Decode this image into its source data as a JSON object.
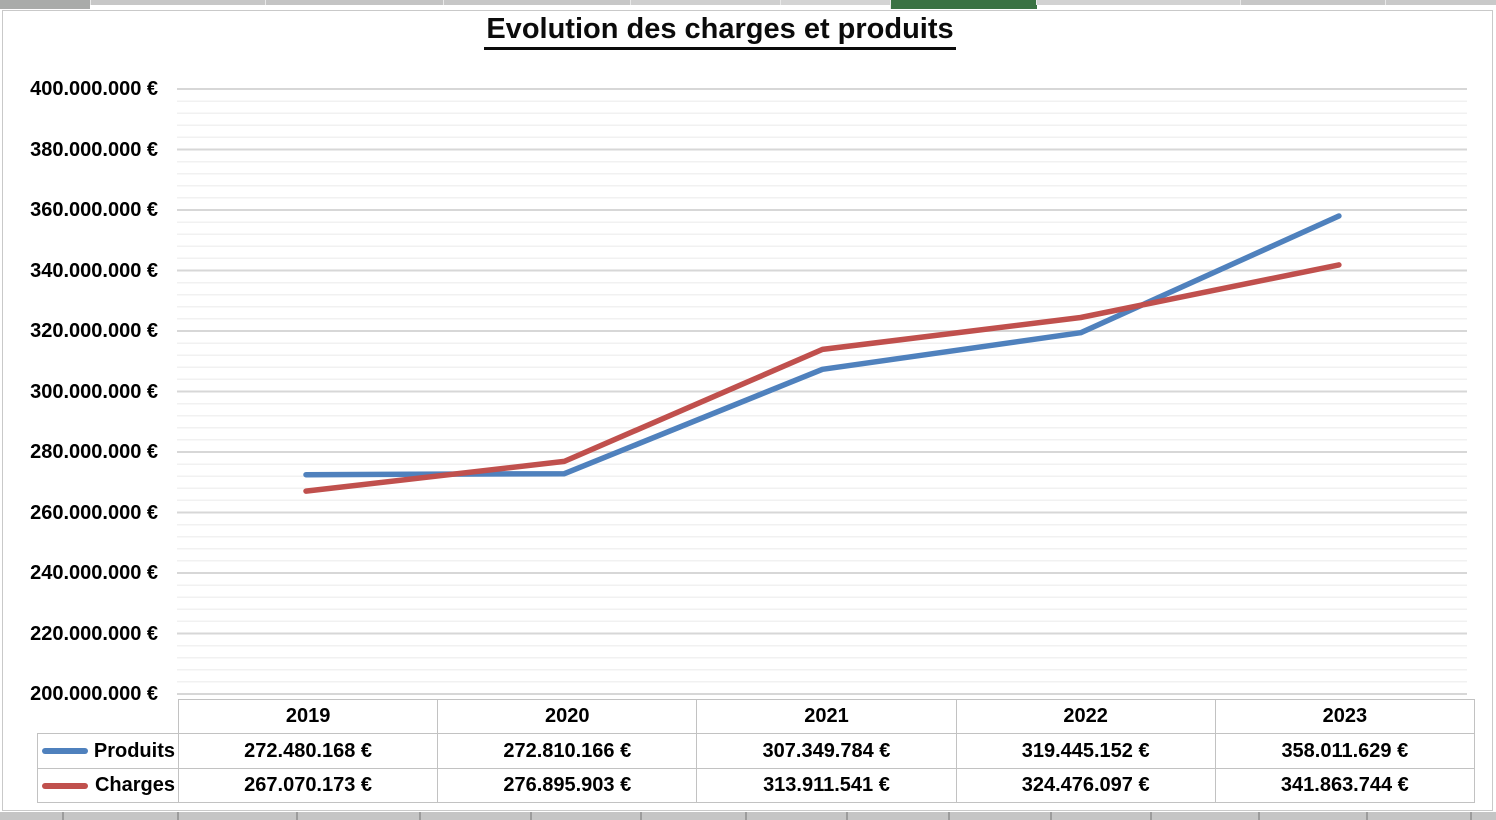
{
  "spreadsheet": {
    "top_strip": {
      "base_color": "#c7c7c7",
      "corner_color": "#a9aba9",
      "selected_cell_color": "#3a7243",
      "separator_color": "#e9e9e9"
    },
    "bottom_strip": {
      "base_color": "#c5c5c5",
      "separator_color": "#9c9c9c"
    },
    "chart_border_color": "#c9c9c9"
  },
  "chart_data": {
    "type": "line",
    "title": "Evolution des charges et produits",
    "categories": [
      "2019",
      "2020",
      "2021",
      "2022",
      "2023"
    ],
    "series": [
      {
        "name": "Produits",
        "color": "#4F81BD",
        "values": [
          272480168,
          272810166,
          307349784,
          319445152,
          358011629
        ],
        "labels": [
          "272.480.168 €",
          "272.810.166 €",
          "307.349.784 €",
          "319.445.152 €",
          "358.011.629 €"
        ]
      },
      {
        "name": "Charges",
        "color": "#C0504D",
        "values": [
          267070173,
          276895903,
          313911541,
          324476097,
          341863744
        ],
        "labels": [
          "267.070.173 €",
          "276.895.903 €",
          "313.911.541 €",
          "324.476.097 €",
          "341.863.744 €"
        ]
      }
    ],
    "y_axis": {
      "min": 200000000,
      "max": 400000000,
      "major_step": 20000000,
      "minor_step": 4000000,
      "tick_labels": [
        "400.000.000 €",
        "380.000.000 €",
        "360.000.000 €",
        "340.000.000 €",
        "320.000.000 €",
        "300.000.000 €",
        "280.000.000 €",
        "260.000.000 €",
        "240.000.000 €",
        "220.000.000 €",
        "200.000.000 €"
      ]
    },
    "grid": {
      "major_color": "#d7d7d7",
      "minor_color": "#f1f1f1",
      "minor_on": true
    },
    "legend_position": "table-left"
  }
}
